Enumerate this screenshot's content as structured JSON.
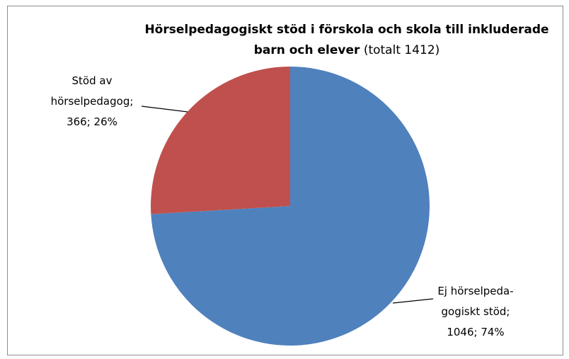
{
  "chart_data": {
    "type": "pie",
    "title": "Hörselpedagogiskt stöd i förskola och skola till inkluderade barn och elever",
    "subtitle": "(totalt 1412)",
    "values": [
      1046,
      366
    ],
    "value_labels": [
      "Ej hörselpeda-gogiskt stöd; 1046; 74%",
      "Stöd av hörselpedagog; 366; 26%"
    ],
    "colors": [
      "#4f81bd",
      "#c0504d"
    ]
  }
}
